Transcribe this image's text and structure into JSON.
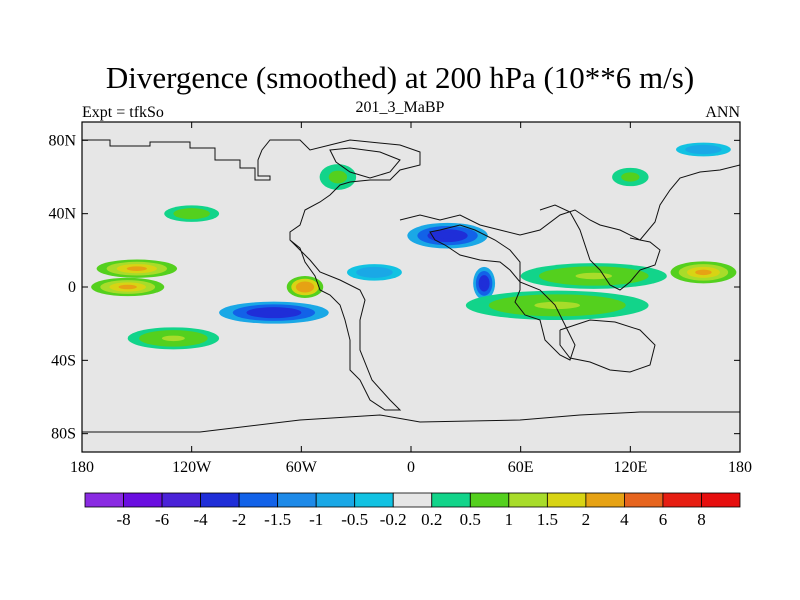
{
  "chart_data": {
    "type": "heatmap",
    "title": "Divergence (smoothed) at 200 hPa (10**6 m/s)",
    "left_string": "Expt = tfkSo",
    "center_string": "201_3_MaBP",
    "right_string": "ANN",
    "x_range": [
      -180,
      180
    ],
    "y_range": [
      -90,
      90
    ],
    "x_ticks": [
      {
        "value": -180,
        "label": "180"
      },
      {
        "value": -120,
        "label": "120W"
      },
      {
        "value": -60,
        "label": "60W"
      },
      {
        "value": 0,
        "label": "0"
      },
      {
        "value": 60,
        "label": "60E"
      },
      {
        "value": 120,
        "label": "120E"
      },
      {
        "value": 180,
        "label": "180"
      }
    ],
    "y_ticks": [
      {
        "value": 80,
        "label": "80N"
      },
      {
        "value": 40,
        "label": "40N"
      },
      {
        "value": 0,
        "label": "0"
      },
      {
        "value": -40,
        "label": "40S"
      },
      {
        "value": -80,
        "label": "80S"
      }
    ],
    "contour_levels": [
      -8,
      -6,
      -4,
      -2,
      -1.5,
      -1,
      -0.5,
      -0.2,
      0.2,
      0.5,
      1,
      1.5,
      2,
      4,
      6,
      8
    ],
    "colorbar_labels": [
      "-8",
      "-6",
      "-4",
      "-2",
      "-1.5",
      "-1",
      "-0.5",
      "-0.2",
      "0.2",
      "0.5",
      "1",
      "1.5",
      "2",
      "4",
      "6",
      "8"
    ],
    "colors": [
      "#8a2be2",
      "#6a0ee0",
      "#4a22d8",
      "#1f2ed8",
      "#1262e8",
      "#1e8ae8",
      "#1aa8e6",
      "#12c2e2",
      "#e6e6e6",
      "#12d48a",
      "#54d01e",
      "#a8dc2a",
      "#d8d414",
      "#e6a214",
      "#e6641e",
      "#e61e12",
      "#e60e0e"
    ],
    "features": [
      {
        "lon": 20,
        "lat": 28,
        "rx": 22,
        "ry": 7,
        "value": -4
      },
      {
        "lon": -75,
        "lat": -14,
        "rx": 30,
        "ry": 6,
        "value": -4
      },
      {
        "lon": 40,
        "lat": 2,
        "rx": 6,
        "ry": 9,
        "value": -4
      },
      {
        "lon": -58,
        "lat": 0,
        "rx": 10,
        "ry": 6,
        "value": 3
      },
      {
        "lon": -150,
        "lat": 10,
        "rx": 22,
        "ry": 5,
        "value": 2
      },
      {
        "lon": -155,
        "lat": 0,
        "rx": 20,
        "ry": 5,
        "value": 2
      },
      {
        "lon": 100,
        "lat": 6,
        "rx": 40,
        "ry": 7,
        "value": 1.2
      },
      {
        "lon": 160,
        "lat": 8,
        "rx": 18,
        "ry": 6,
        "value": 2
      },
      {
        "lon": 80,
        "lat": -10,
        "rx": 50,
        "ry": 8,
        "value": 1
      },
      {
        "lon": -40,
        "lat": 60,
        "rx": 10,
        "ry": 7,
        "value": 0.8
      },
      {
        "lon": 120,
        "lat": 60,
        "rx": 10,
        "ry": 5,
        "value": 0.8
      },
      {
        "lon": 160,
        "lat": 75,
        "rx": 20,
        "ry": 5,
        "value": -0.7
      },
      {
        "lon": -130,
        "lat": -28,
        "rx": 25,
        "ry": 6,
        "value": 1
      },
      {
        "lon": -120,
        "lat": 40,
        "rx": 20,
        "ry": 6,
        "value": 0.7
      },
      {
        "lon": -20,
        "lat": 8,
        "rx": 20,
        "ry": 6,
        "value": -0.8
      }
    ]
  },
  "colorbar": {
    "label_count": 16
  }
}
